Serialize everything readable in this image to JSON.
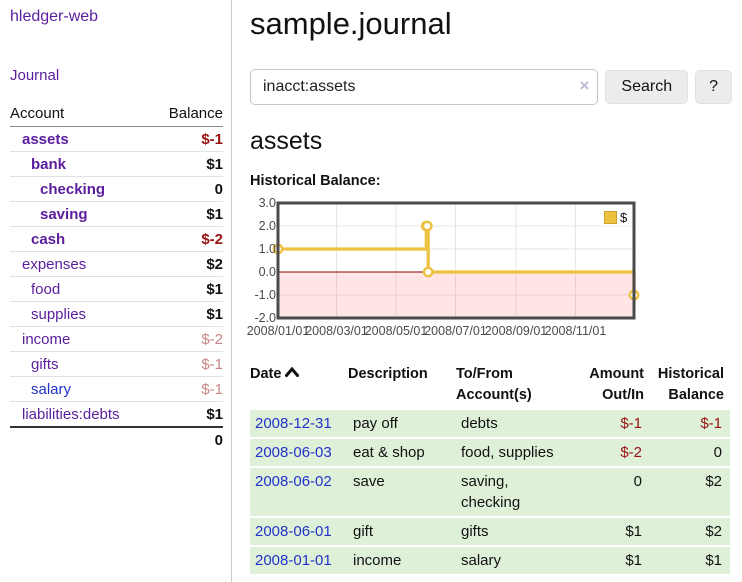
{
  "colors": {
    "link_purple": "#5a1d9e",
    "link_blue": "#2233cc",
    "neg_strong": "#991111",
    "neg_muted": "#c98585",
    "row_green": "#dff0d8",
    "chart_line": "#edc240",
    "chart_zero_line": "#8b0000",
    "chart_negative_fill": "rgba(255,0,0,0.10)",
    "chart_border": "#4a4a4a",
    "chart_grid": "#e6e6e6"
  },
  "app": {
    "brand": "hledger-web",
    "nav_journal": "Journal"
  },
  "sidebar": {
    "col_account": "Account",
    "col_balance": "Balance",
    "accounts": [
      {
        "name": "assets",
        "depth": 1,
        "bold": true,
        "balance": "$-1",
        "bal_class": "negstrong"
      },
      {
        "name": "bank",
        "depth": 2,
        "bold": true,
        "balance": "$1",
        "bal_class": ""
      },
      {
        "name": "checking",
        "depth": 3,
        "bold": true,
        "balance": "0",
        "bal_class": ""
      },
      {
        "name": "saving",
        "depth": 3,
        "bold": true,
        "balance": "$1",
        "bal_class": ""
      },
      {
        "name": "cash",
        "depth": 2,
        "bold": true,
        "balance": "$-2",
        "bal_class": "negstrong"
      },
      {
        "name": "expenses",
        "depth": 1,
        "bold": false,
        "balance": "$2",
        "bal_class": ""
      },
      {
        "name": "food",
        "depth": 2,
        "bold": false,
        "balance": "$1",
        "bal_class": ""
      },
      {
        "name": "supplies",
        "depth": 2,
        "bold": false,
        "balance": "$1",
        "bal_class": ""
      },
      {
        "name": "income",
        "depth": 1,
        "bold": false,
        "balance": "$-2",
        "bal_class": "negmuted"
      },
      {
        "name": "gifts",
        "depth": 2,
        "bold": false,
        "balance": "$-1",
        "bal_class": "negmuted"
      },
      {
        "name": "salary",
        "depth": 2,
        "bold": false,
        "balance": "$-1",
        "bal_class": "negmuted",
        "link_color": "blue"
      },
      {
        "name": "liabilities:debts",
        "depth": 1,
        "bold": false,
        "balance": "$1",
        "bal_class": ""
      }
    ],
    "total": "0"
  },
  "main": {
    "title": "sample.journal",
    "search": {
      "value": "inacct:assets",
      "clear_icon": "×",
      "search_button": "Search",
      "help_button": "?"
    },
    "account_heading": "assets",
    "chart_title": "Historical Balance:"
  },
  "chart_data": {
    "type": "line",
    "step": true,
    "title": "Historical Balance",
    "series": [
      {
        "name": "$",
        "points": [
          [
            "2008-01-01",
            1
          ],
          [
            "2008-06-01",
            2
          ],
          [
            "2008-06-02",
            2
          ],
          [
            "2008-06-03",
            0
          ],
          [
            "2008-12-31",
            -1
          ]
        ]
      }
    ],
    "x_range": [
      "2008-01-01",
      "2008-12-31"
    ],
    "ylim": [
      -2,
      3
    ],
    "y_ticks": [
      {
        "label": "3.0",
        "value": 3
      },
      {
        "label": "2.0",
        "value": 2
      },
      {
        "label": "1.0",
        "value": 1
      },
      {
        "label": "0.0",
        "value": 0
      },
      {
        "label": "-1.0",
        "value": -1
      },
      {
        "label": "-2.0",
        "value": -2
      }
    ],
    "x_ticks": [
      {
        "label": "2008/01/01",
        "date": "2008-01-01"
      },
      {
        "label": "2008/03/01",
        "date": "2008-03-01"
      },
      {
        "label": "2008/05/01",
        "date": "2008-05-01"
      },
      {
        "label": "2008/07/01",
        "date": "2008-07-01"
      },
      {
        "label": "2008/09/01",
        "date": "2008-09-01"
      },
      {
        "label": "2008/11/01",
        "date": "2008-11-01"
      }
    ],
    "legend": [
      "$"
    ],
    "legend_position": "ne",
    "grid": true,
    "negative_region_shaded": true
  },
  "register": {
    "headers": [
      {
        "label": "Date",
        "sort": "asc",
        "align": "left"
      },
      {
        "label": "Description",
        "align": "left"
      },
      {
        "label": "To/From\nAccount(s)",
        "align": "left"
      },
      {
        "label": "Amount\nOut/In",
        "align": "right"
      },
      {
        "label": "Historical\nBalance",
        "align": "right"
      }
    ],
    "rows": [
      {
        "date": "2008-12-31",
        "description": "pay off",
        "accounts": "debts",
        "amount": "$-1",
        "amount_neg": true,
        "balance": "$-1",
        "balance_neg": true
      },
      {
        "date": "2008-06-03",
        "description": "eat & shop",
        "accounts": "food, supplies",
        "amount": "$-2",
        "amount_neg": true,
        "balance": "0",
        "balance_neg": false
      },
      {
        "date": "2008-06-02",
        "description": "save",
        "accounts": "saving,\nchecking",
        "amount": "0",
        "amount_neg": false,
        "balance": "$2",
        "balance_neg": false
      },
      {
        "date": "2008-06-01",
        "description": "gift",
        "accounts": "gifts",
        "amount": "$1",
        "amount_neg": false,
        "balance": "$2",
        "balance_neg": false
      },
      {
        "date": "2008-01-01",
        "description": "income",
        "accounts": "salary",
        "amount": "$1",
        "amount_neg": false,
        "balance": "$1",
        "balance_neg": false
      }
    ]
  }
}
